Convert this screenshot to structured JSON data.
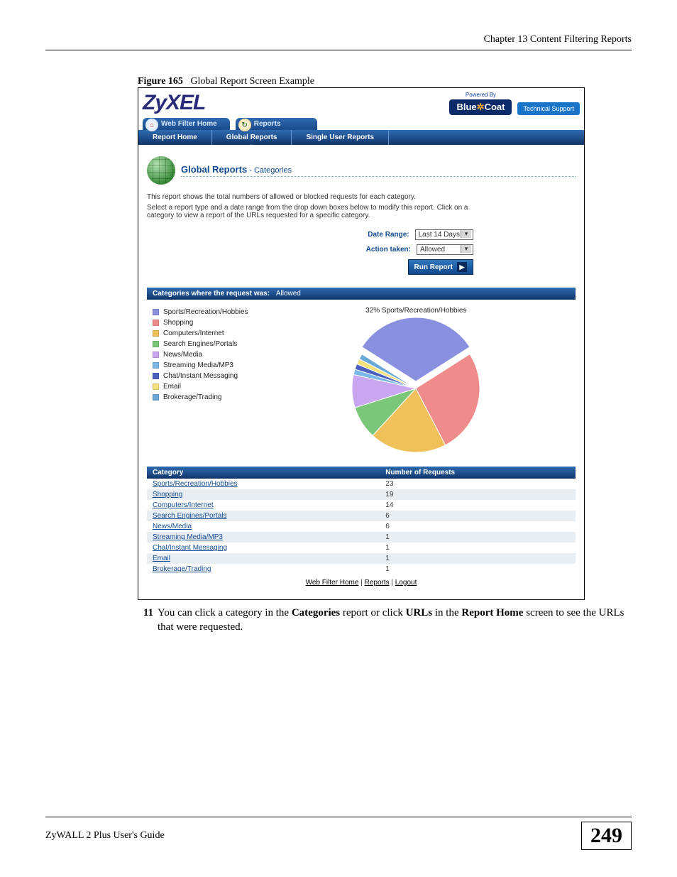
{
  "doc": {
    "chapter_header": "Chapter 13 Content Filtering Reports",
    "figure_label": "Figure 165",
    "figure_title": "Global Report Screen Example",
    "instruction_num": "11",
    "instruction_html": "You can click a category in the <b>Categories</b> report or click <b>URLs</b> in the <b>Report Home</b> screen to see the URLs that were requested.",
    "guide_name": "ZyWALL 2 Plus User's Guide",
    "page_number": "249"
  },
  "header": {
    "logo": "ZyXEL",
    "powered_by": "Powered By",
    "bluecoat_a": "Blue",
    "bluecoat_b": "Coat",
    "tech_support": "Technical Support"
  },
  "main_tabs": {
    "home": "Web Filter Home",
    "reports": "Reports"
  },
  "subnav": {
    "report_home": "Report Home",
    "global_reports": "Global Reports",
    "single_user": "Single User Reports"
  },
  "report": {
    "title_main": "Global Reports",
    "title_sub": " - Categories",
    "desc1": "This report shows the total numbers of allowed or blocked requests for each category.",
    "desc2": "Select a report type and a date range from the drop down boxes below to modify this report. Click on a category to view a report of the URLs requested for a specific category.",
    "date_range_label": "Date Range:",
    "date_range_value": "Last 14 Days",
    "action_label": "Action taken:",
    "action_value": "Allowed",
    "run_button": "Run Report"
  },
  "section_bar": {
    "label": "Categories where the request was:",
    "status": "Allowed"
  },
  "chart": {
    "highlight_label": "32%  Sports/Recreation/Hobbies",
    "legend": [
      {
        "label": "Sports/Recreation/Hobbies",
        "color": "#8a90e0"
      },
      {
        "label": "Shopping",
        "color": "#f08b8b"
      },
      {
        "label": "Computers/Internet",
        "color": "#f0c05a"
      },
      {
        "label": "Search Engines/Portals",
        "color": "#7ac77a"
      },
      {
        "label": "News/Media",
        "color": "#c9a6f0"
      },
      {
        "label": "Streaming Media/MP3",
        "color": "#7ab8e8"
      },
      {
        "label": "Chat/Instant Messaging",
        "color": "#4a5fc0"
      },
      {
        "label": "Email",
        "color": "#f5e27a"
      },
      {
        "label": "Brokerage/Trading",
        "color": "#6aa8d8"
      }
    ],
    "values": [
      23,
      19,
      14,
      6,
      6,
      1,
      1,
      1,
      1
    ]
  },
  "table": {
    "col_category": "Category",
    "col_requests": "Number of Requests",
    "rows": [
      {
        "cat": "Sports/Recreation/Hobbies",
        "n": "23"
      },
      {
        "cat": "Shopping",
        "n": "19"
      },
      {
        "cat": "Computers/Internet",
        "n": "14"
      },
      {
        "cat": "Search Engines/Portals",
        "n": "6"
      },
      {
        "cat": "News/Media",
        "n": "6"
      },
      {
        "cat": "Streaming Media/MP3",
        "n": "1"
      },
      {
        "cat": "Chat/Instant Messaging",
        "n": "1"
      },
      {
        "cat": "Email",
        "n": "1"
      },
      {
        "cat": "Brokerage/Trading",
        "n": "1"
      }
    ]
  },
  "footer_links": {
    "a": "Web Filter Home",
    "b": "Reports",
    "c": "Logout"
  }
}
